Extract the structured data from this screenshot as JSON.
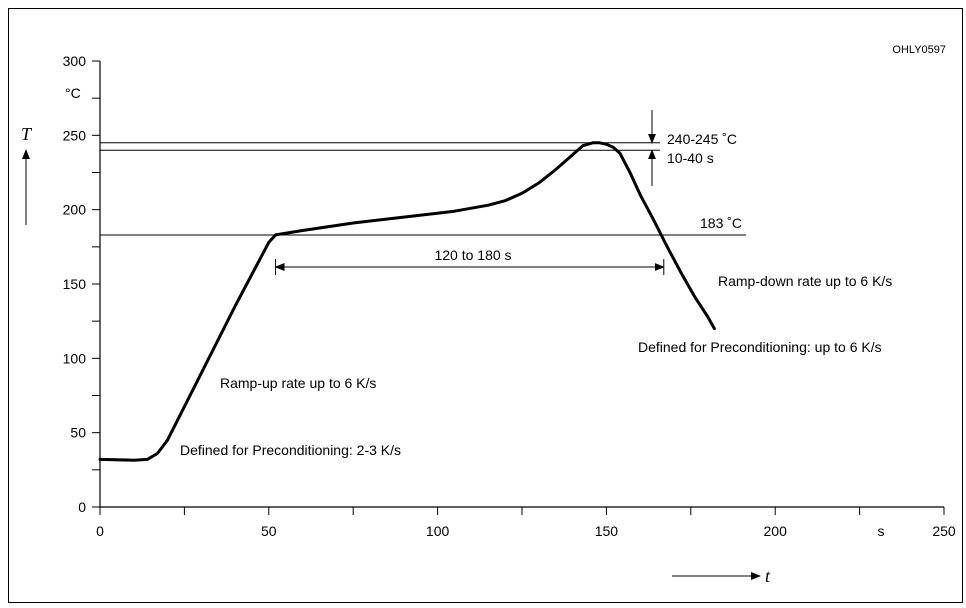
{
  "figure_code": "OHLY0597",
  "chart_data": {
    "type": "line",
    "xlabel": "t",
    "ylabel": "T",
    "x_unit": "s",
    "y_unit": "°C",
    "xlim": [
      0,
      250
    ],
    "ylim": [
      0,
      300
    ],
    "x_ticks": [
      0,
      50,
      100,
      150,
      200,
      250
    ],
    "x_tick_labels": [
      "0",
      "50",
      "100",
      "150",
      "200",
      "250"
    ],
    "x_minor_ticks": [
      25,
      75,
      125,
      175,
      225
    ],
    "y_ticks": [
      0,
      50,
      100,
      150,
      200,
      250,
      300
    ],
    "y_tick_labels": [
      "0",
      "50",
      "100",
      "150",
      "200",
      "250",
      "300"
    ],
    "y_minor_ticks": [
      25,
      75,
      125,
      175,
      225,
      275
    ],
    "grid": false,
    "series": [
      {
        "x": [
          0,
          10,
          14,
          17,
          20,
          30,
          40,
          50,
          52,
          60,
          75,
          90,
          105,
          115,
          120,
          125,
          130,
          135,
          140,
          143,
          146,
          148,
          150,
          152,
          154,
          157,
          160,
          164,
          168,
          172,
          176,
          180,
          182
        ],
        "y": [
          32,
          31.5,
          32,
          36,
          45,
          90,
          135,
          178,
          183,
          186,
          191,
          195,
          199,
          203,
          206,
          211,
          218,
          227,
          237,
          243,
          245,
          245,
          244,
          242,
          238,
          225,
          210,
          193,
          175,
          158,
          142,
          128,
          120
        ]
      }
    ],
    "reference_lines": [
      {
        "y": 245,
        "x_range": [
          0,
          164
        ]
      },
      {
        "y": 240,
        "x_range": [
          0,
          164
        ]
      },
      {
        "y": 183,
        "x_range": [
          0,
          190
        ]
      }
    ],
    "annotations": {
      "peak_temp": "240-245 ˚C",
      "peak_time": "10-40 s",
      "liquidus": "183 ˚C",
      "duration": "120 to 180 s",
      "ramp_up": "Ramp-up rate up to 6 K/s",
      "ramp_up_precond": "Defined for Preconditioning: 2-3 K/s",
      "ramp_down": "Ramp-down rate up to 6 K/s",
      "ramp_down_precond": "Defined for Preconditioning: up to 6 K/s"
    },
    "duration_span": [
      52,
      167
    ]
  }
}
